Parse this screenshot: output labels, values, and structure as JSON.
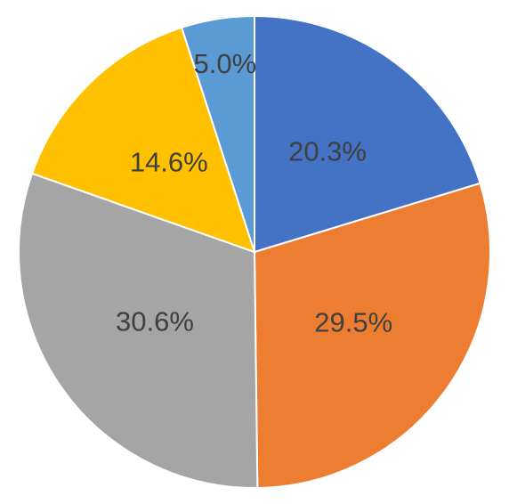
{
  "chart_data": {
    "type": "pie",
    "values": [
      20.3,
      29.5,
      30.6,
      14.6,
      5.0
    ],
    "value_labels": [
      "20.3%",
      "29.5%",
      "30.6%",
      "14.6%",
      "5.0%"
    ],
    "colors": [
      "#4472c4",
      "#ed7d31",
      "#a5a5a5",
      "#ffc000",
      "#5b9bd5"
    ]
  }
}
